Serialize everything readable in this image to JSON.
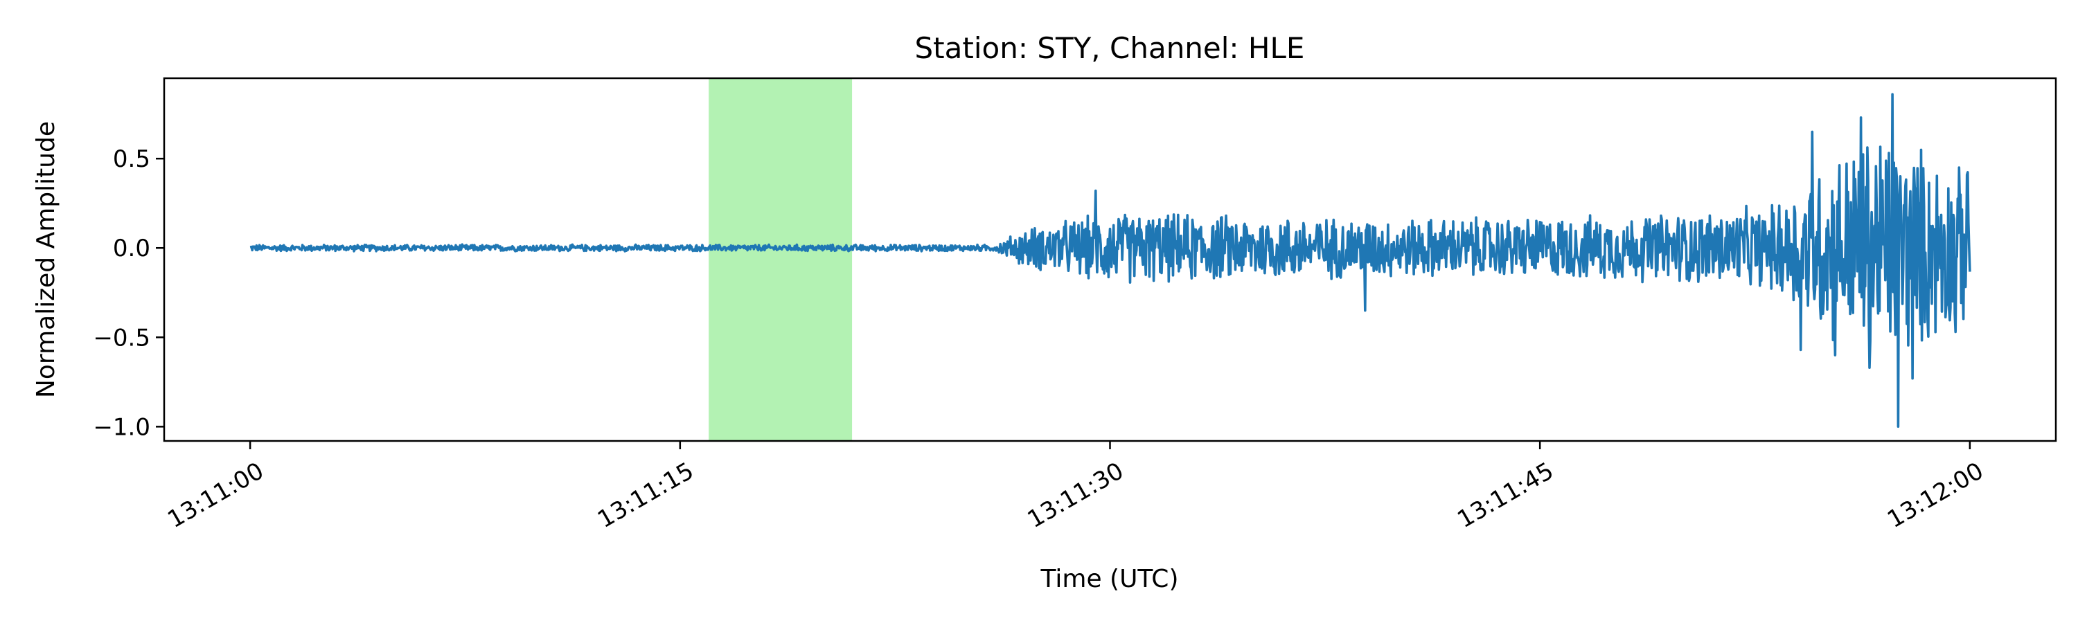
{
  "chart_data": {
    "type": "line",
    "title": "Station: STY, Channel: HLE",
    "xlabel": "Time (UTC)",
    "ylabel": "Normalized Amplitude",
    "xlim": [
      "13:10:57",
      "13:12:03"
    ],
    "ylim": [
      -1.08,
      0.95
    ],
    "x_ticks": [
      "13:11:00",
      "13:11:15",
      "13:11:30",
      "13:11:45",
      "13:12:00"
    ],
    "y_ticks": [
      {
        "value": 0.5,
        "label": "0.5"
      },
      {
        "value": 0.0,
        "label": "0.0"
      },
      {
        "value": -0.5,
        "label": "−0.5"
      },
      {
        "value": -1.0,
        "label": "−1.0"
      }
    ],
    "grid": false,
    "highlight": {
      "start": "13:11:16",
      "end": "13:11:21",
      "color": "#b3f2b3"
    },
    "series": [
      {
        "color": "#1f77b4",
        "start_time": "13:11:00",
        "end_time": "13:12:00",
        "noise_envelope": [
          {
            "time": "13:11:00",
            "amplitude": 0.02
          },
          {
            "time": "13:11:26",
            "amplitude": 0.02
          },
          {
            "time": "13:11:27",
            "amplitude": 0.12
          },
          {
            "time": "13:11:30",
            "amplitude": 0.22
          },
          {
            "time": "13:11:40",
            "amplitude": 0.18
          },
          {
            "time": "13:11:48",
            "amplitude": 0.2
          },
          {
            "time": "13:11:53",
            "amplitude": 0.25
          },
          {
            "time": "13:11:55",
            "amplitude": 0.55
          },
          {
            "time": "13:11:57",
            "amplitude": 0.75
          },
          {
            "time": "13:12:00",
            "amplitude": 0.45
          }
        ],
        "peaks": [
          {
            "time": "13:11:29.5",
            "value": 0.32
          },
          {
            "time": "13:11:38.9",
            "value": -0.35
          },
          {
            "time": "13:11:54.1",
            "value": -0.57
          },
          {
            "time": "13:11:54.5",
            "value": 0.65
          },
          {
            "time": "13:11:55.3",
            "value": -0.6
          },
          {
            "time": "13:11:56.2",
            "value": 0.73
          },
          {
            "time": "13:11:56.5",
            "value": -0.67
          },
          {
            "time": "13:11:57.3",
            "value": 0.86
          },
          {
            "time": "13:11:57.5",
            "value": -1.0
          },
          {
            "time": "13:11:58.0",
            "value": -0.73
          },
          {
            "time": "13:11:59.5",
            "value": -0.47
          },
          {
            "time": "13:11:59.9",
            "value": 0.41
          }
        ]
      }
    ]
  }
}
